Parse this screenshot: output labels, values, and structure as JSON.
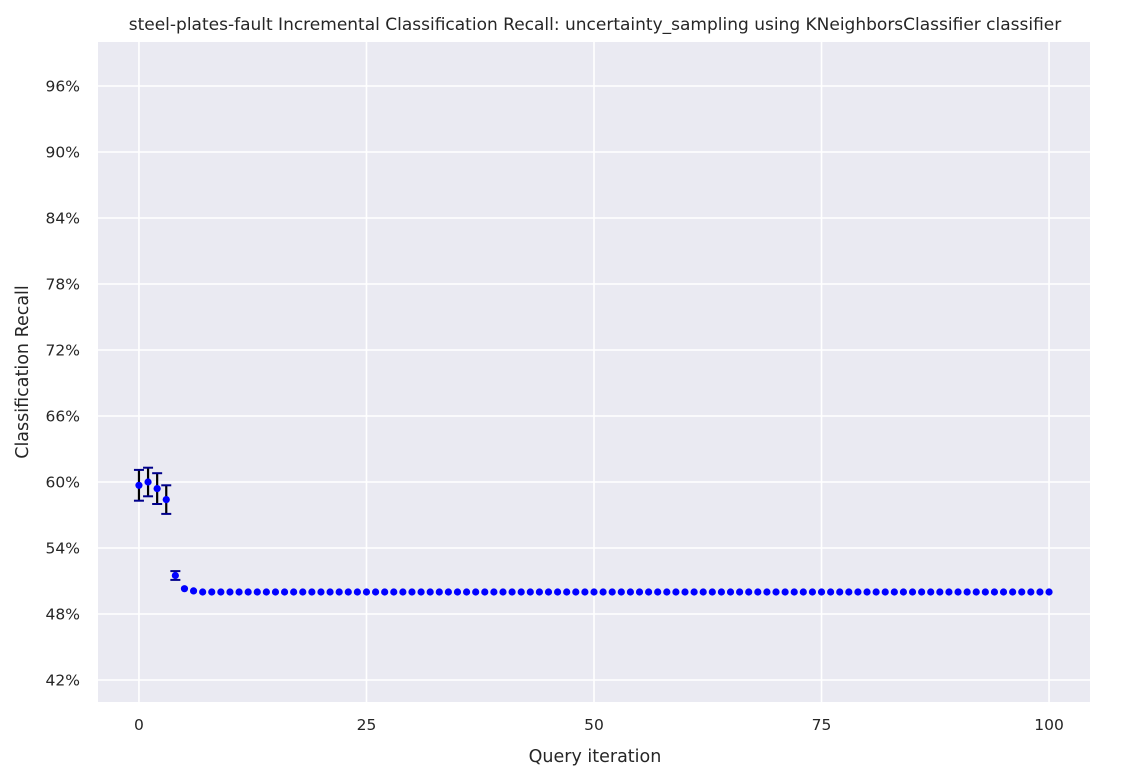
{
  "chart_data": {
    "type": "scatter",
    "title": "steel-plates-fault Incremental Classification Recall: uncertainty_sampling using KNeighborsClassifier classifier",
    "xlabel": "Query iteration",
    "ylabel": "Classification Recall",
    "xlim": [
      -4.5,
      104.5
    ],
    "ylim": [
      0.4,
      1.0
    ],
    "x_ticks": [
      0,
      25,
      50,
      75,
      100
    ],
    "x_tick_labels": [
      "0",
      "25",
      "50",
      "75",
      "100"
    ],
    "y_ticks": [
      0.42,
      0.48,
      0.54,
      0.6,
      0.66,
      0.72,
      0.78,
      0.84,
      0.9,
      0.96
    ],
    "y_tick_labels": [
      "42%",
      "48%",
      "54%",
      "60%",
      "66%",
      "72%",
      "78%",
      "84%",
      "90%",
      "96%"
    ],
    "grid": true,
    "background_color": "#EAEAF2",
    "grid_color": "#FFFFFF",
    "marker_color": "#0000FF",
    "errorbar_color": "#000000",
    "errorbar_cap_color": "#00008B",
    "points": [
      {
        "x": 0,
        "y": 0.597,
        "err": 0.014
      },
      {
        "x": 1,
        "y": 0.6,
        "err": 0.013
      },
      {
        "x": 2,
        "y": 0.594,
        "err": 0.014
      },
      {
        "x": 3,
        "y": 0.584,
        "err": 0.013
      },
      {
        "x": 4,
        "y": 0.515,
        "err": 0.004
      },
      {
        "x": 5,
        "y": 0.503,
        "err": 0
      },
      {
        "x": 6,
        "y": 0.501,
        "err": 0
      }
    ],
    "plateau": {
      "x_start": 7,
      "x_end": 100,
      "y": 0.5
    }
  }
}
